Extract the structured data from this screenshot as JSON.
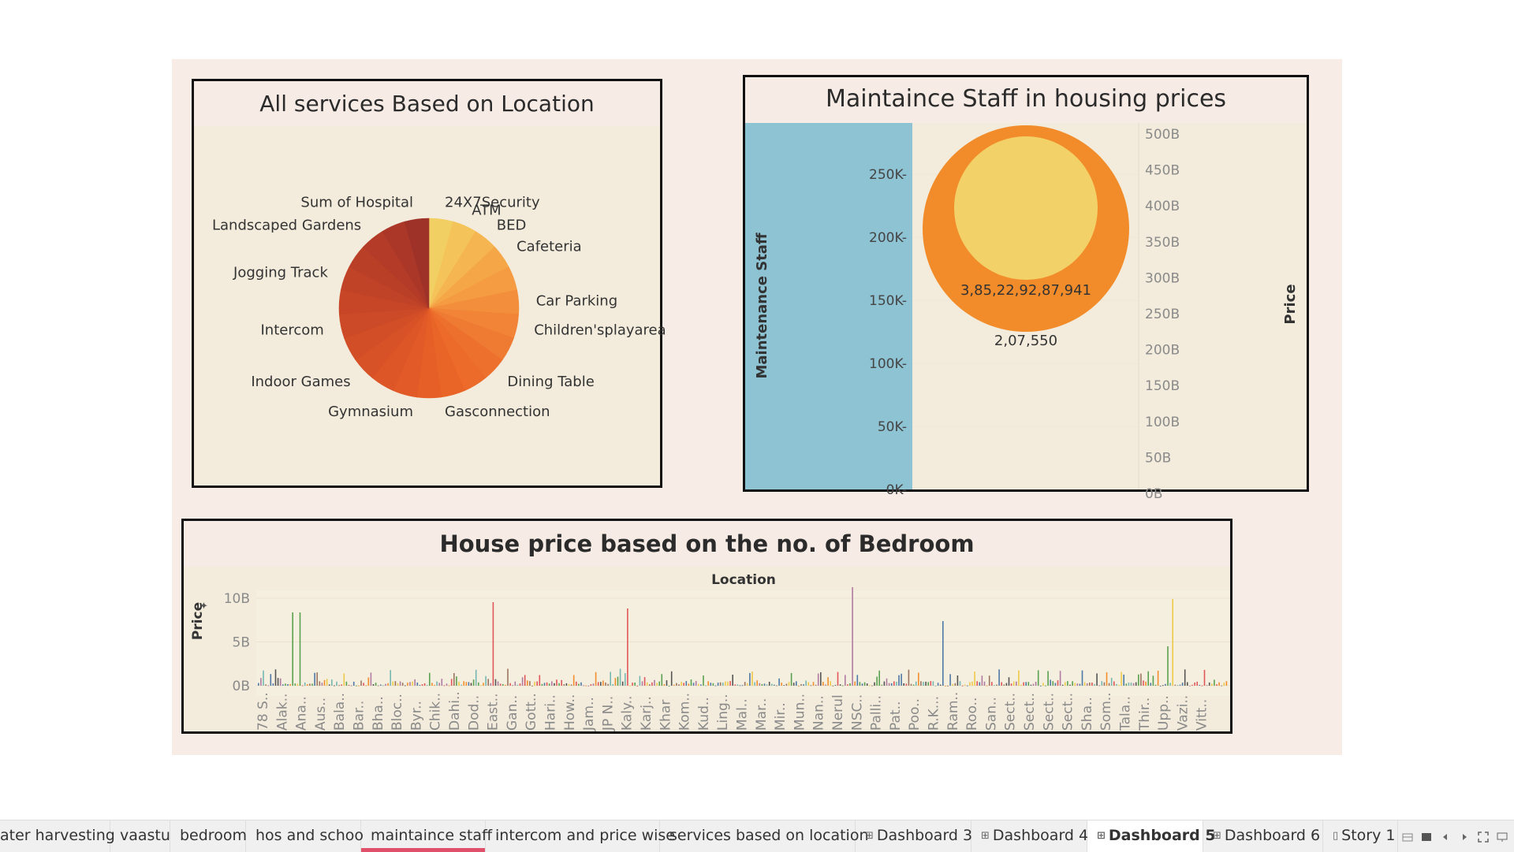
{
  "dashboard": {
    "pie": {
      "title": "All services Based on Location",
      "slices": [
        {
          "label": "24X7Security",
          "value": 1,
          "color": "#f2cf62"
        },
        {
          "label": "ATM",
          "value": 1,
          "color": "#f4c35a"
        },
        {
          "label": "BED",
          "value": 1,
          "color": "#f5b551"
        },
        {
          "label": "Cafeteria",
          "value": 1,
          "color": "#f5a748"
        },
        {
          "label": "",
          "value": 1,
          "color": "#f59b42"
        },
        {
          "label": "Car Parking",
          "value": 1,
          "color": "#f38f3c"
        },
        {
          "label": "Children'splayarea",
          "value": 1,
          "color": "#f18436"
        },
        {
          "label": "",
          "value": 1,
          "color": "#ef7a31"
        },
        {
          "label": "Dining Table",
          "value": 1,
          "color": "#ed712d"
        },
        {
          "label": "",
          "value": 1,
          "color": "#ec6a2a"
        },
        {
          "label": "Gasconnection",
          "value": 1,
          "color": "#e96427"
        },
        {
          "label": "",
          "value": 1,
          "color": "#e65f27"
        },
        {
          "label": "Gymnasium",
          "value": 1,
          "color": "#e25a27"
        },
        {
          "label": "",
          "value": 1,
          "color": "#dd5627"
        },
        {
          "label": "Indoor Games",
          "value": 1,
          "color": "#d85227"
        },
        {
          "label": "",
          "value": 1,
          "color": "#d24e27"
        },
        {
          "label": "Intercom",
          "value": 1,
          "color": "#cc4a27"
        },
        {
          "label": "",
          "value": 1,
          "color": "#c64627"
        },
        {
          "label": "Jogging Track",
          "value": 1,
          "color": "#c04227"
        },
        {
          "label": "",
          "value": 1,
          "color": "#ba3f27"
        },
        {
          "label": "Landscaped Gardens",
          "value": 1,
          "color": "#b33b28"
        },
        {
          "label": "",
          "value": 1,
          "color": "#aa3728"
        },
        {
          "label": "Sum of Hospital",
          "value": 1,
          "color": "#9e3228"
        }
      ]
    },
    "bubble": {
      "title": "Maintaince Staff in housing prices",
      "y_axis_label": "Maintenance Staff",
      "y_ticks": [
        "250K",
        "200K",
        "150K",
        "100K",
        "50K",
        "0K"
      ],
      "right_axis_label": "Price",
      "right_ticks": [
        "500B",
        "450B",
        "400B",
        "350B",
        "300B",
        "250B",
        "200B",
        "150B",
        "100B",
        "50B",
        "0B"
      ],
      "outer_label": "3,85,22,92,87,941",
      "inner_label": "2,07,550",
      "outer_color": "#f28c2a",
      "inner_color": "#f2d169",
      "pane_color": "#8dc3d3"
    },
    "bars": {
      "title": "House price based on the no. of Bedroom",
      "header": "Location",
      "y_axis_label": "Price",
      "y_ticks": [
        "10B",
        "5B",
        "0B"
      ],
      "categories": [
        "78 S..",
        "Alak..",
        "Ana..",
        "Aus..",
        "Bala..",
        "Bar..",
        "Bha..",
        "Bloc..",
        "Byr..",
        "Chik..",
        "Dahi..",
        "Dod..",
        "East..",
        "Gan..",
        "Gott..",
        "Hari..",
        "How..",
        "Jam..",
        "JP N..",
        "Kaly..",
        "Karj..",
        "Khar",
        "Kom..",
        "Kud..",
        "Ling..",
        "Mal..",
        "Mar..",
        "Mir..",
        "Mun..",
        "Nan..",
        "Nerul",
        "NSC..",
        "Palli..",
        "Pat..",
        "Poo..",
        "R.K...",
        "Ram..",
        "Roo..",
        "San..",
        "Sect..",
        "Sect..",
        "Sect..",
        "Sect..",
        "Sha..",
        "Som..",
        "Tala..",
        "Thir..",
        "Upp..",
        "Vazi..",
        "Vitt.."
      ]
    }
  },
  "tabs": [
    {
      "label": "ater harvesting",
      "icon": ""
    },
    {
      "label": "vaastu",
      "icon": ""
    },
    {
      "label": "bedroom",
      "icon": ""
    },
    {
      "label": "hos and schoo",
      "icon": ""
    },
    {
      "label": "maintaince staff",
      "icon": ""
    },
    {
      "label": "intercom and price wise",
      "icon": ""
    },
    {
      "label": "services based on location",
      "icon": ""
    },
    {
      "label": "Dashboard 3",
      "icon": "⊞"
    },
    {
      "label": "Dashboard 4",
      "icon": "⊞"
    },
    {
      "label": "Dashboard 5",
      "icon": "⊞"
    },
    {
      "label": "Dashboard 6",
      "icon": "⊞"
    },
    {
      "label": "Story 1",
      "icon": "▯"
    }
  ]
}
